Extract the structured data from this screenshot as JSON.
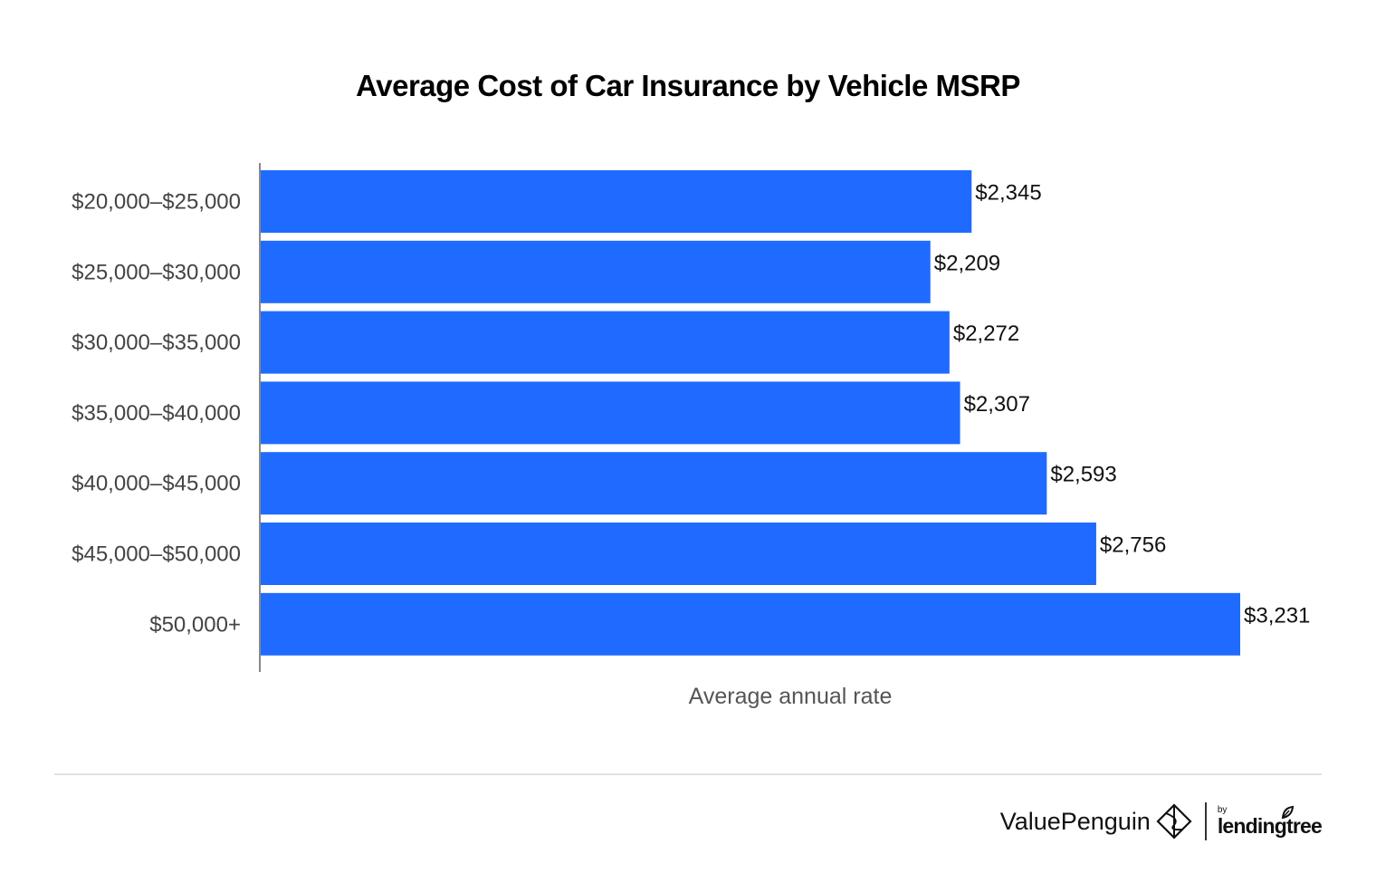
{
  "chart_data": {
    "type": "bar",
    "orientation": "horizontal",
    "title": "Average Cost of Car Insurance by Vehicle MSRP",
    "xlabel": "Average annual rate",
    "ylabel": "",
    "categories": [
      "$20,000–$25,000",
      "$25,000–$30,000",
      "$30,000–$35,000",
      "$35,000–$40,000",
      "$40,000–$45,000",
      "$45,000–$50,000",
      "$50,000+"
    ],
    "values": [
      2345,
      2209,
      2272,
      2307,
      2593,
      2756,
      3231
    ],
    "value_labels": [
      "$2,345",
      "$2,209",
      "$2,272",
      "$2,307",
      "$2,593",
      "$2,756",
      "$3,231"
    ],
    "xlim": [
      0,
      3231
    ],
    "bar_color": "#1f6bff",
    "grid": false,
    "legend": "none"
  },
  "footer": {
    "brand_primary": "ValuePenguin",
    "brand_by": "by",
    "brand_secondary": "lendingtree",
    "logo_icon": "valuepenguin-logo-icon",
    "leaf_icon": "leaf-icon"
  }
}
